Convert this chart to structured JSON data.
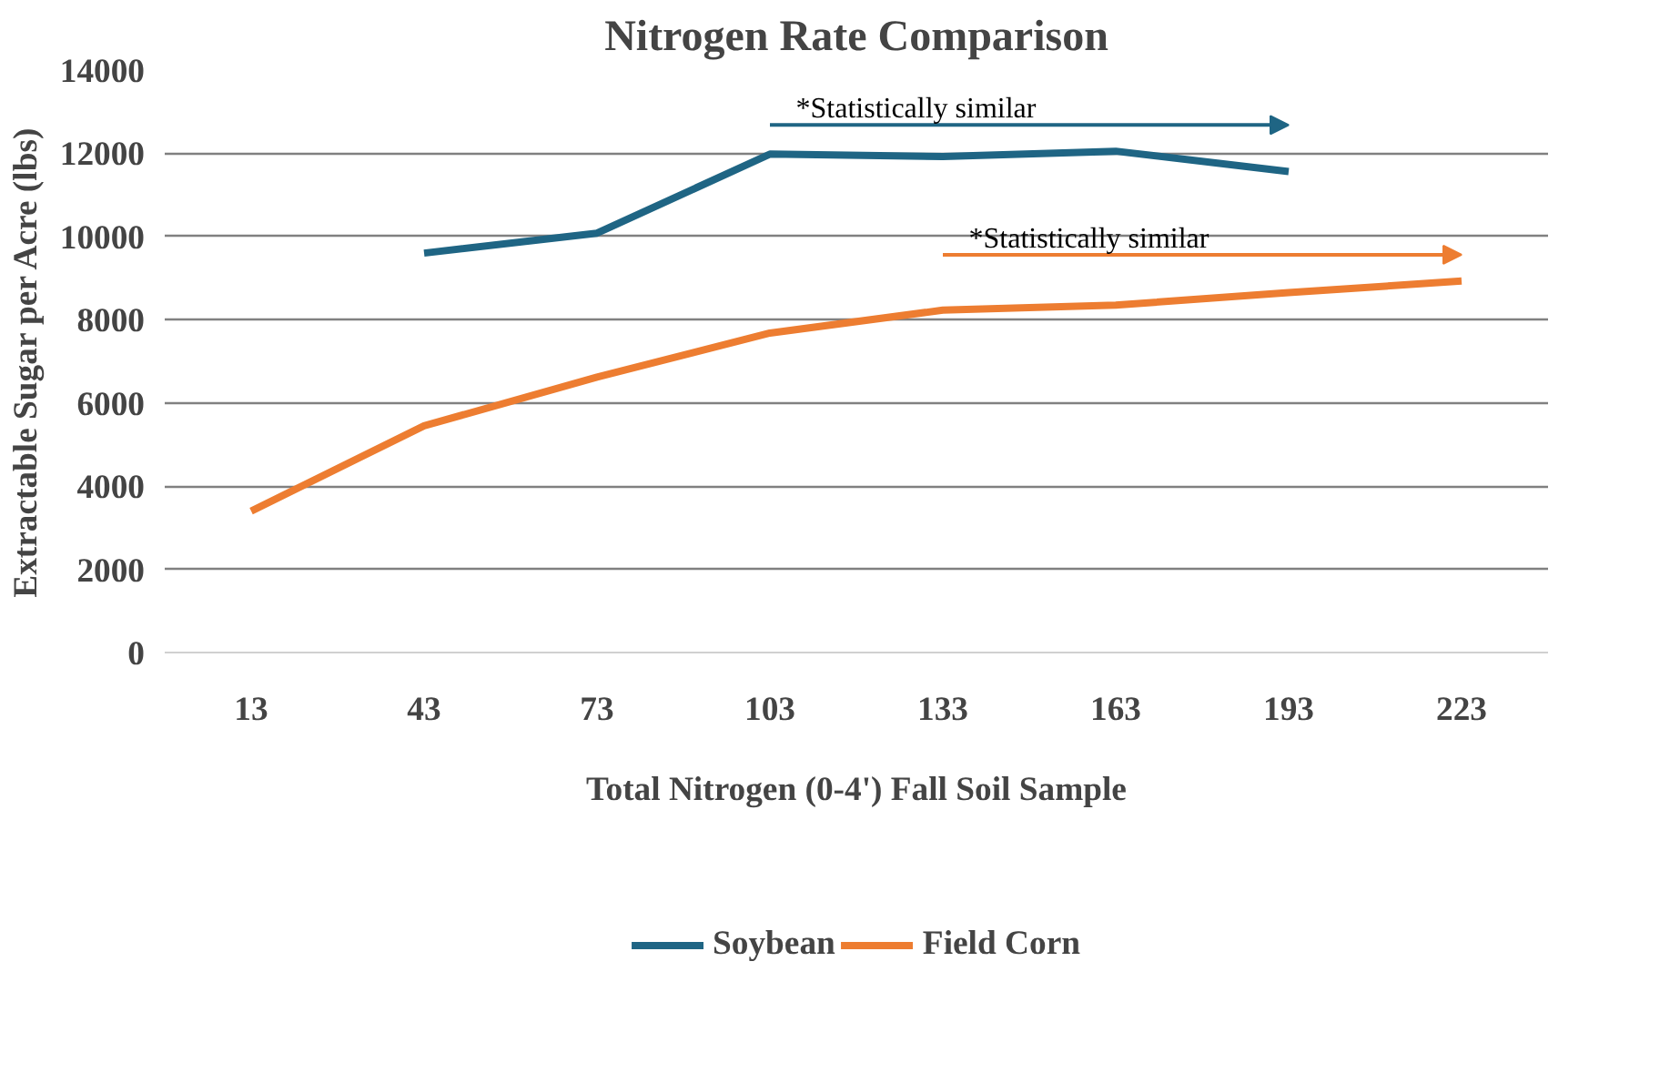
{
  "chart_data": {
    "type": "line",
    "title": "Nitrogen Rate Comparison",
    "xlabel": "Total Nitrogen (0-4') Fall Soil Sample",
    "ylabel": "Extractable Sugar per Acre (lbs)",
    "categories": [
      "13",
      "43",
      "73",
      "103",
      "133",
      "163",
      "193",
      "223"
    ],
    "series": [
      {
        "name": "Soybean",
        "color": "#1f6584",
        "values": [
          null,
          9600,
          10080,
          11980,
          11920,
          12050,
          11560,
          null
        ]
      },
      {
        "name": "Field Corn",
        "color": "#ed7d31",
        "values": [
          3400,
          5450,
          6620,
          7680,
          8230,
          8350,
          8650,
          8930
        ]
      }
    ],
    "annotations": [
      "*Statistically similar",
      "*Statistically similar"
    ],
    "ylim": [
      0,
      14000
    ],
    "yticks": [
      0,
      2000,
      4000,
      6000,
      8000,
      10000,
      12000,
      14000
    ],
    "grid": "y",
    "legend": "bottom",
    "marker": "none",
    "line_style": "solid"
  }
}
